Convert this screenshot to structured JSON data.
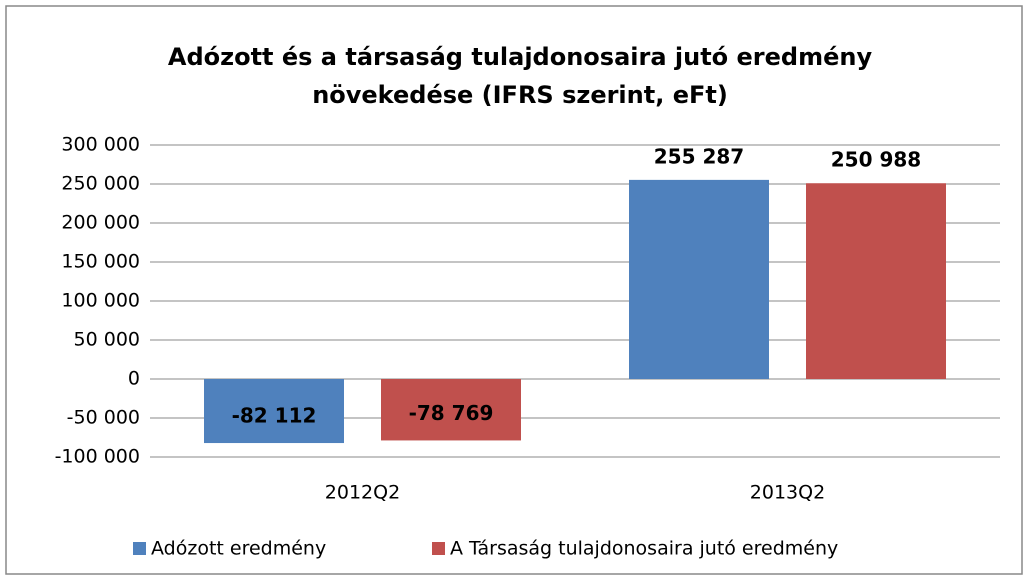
{
  "chart_data": {
    "type": "bar",
    "title": [
      "Adózott és a társaság tulajdonosaira  jutó  eredmény",
      "növekedése (IFRS szerint, eFt)"
    ],
    "categories": [
      "2012Q2",
      "2013Q2"
    ],
    "series": [
      {
        "name": "Adózott eredmény",
        "color": "#4f81bd",
        "values": [
          -82112,
          255287
        ],
        "value_labels": [
          "-82 112",
          "255 287"
        ]
      },
      {
        "name": "A Társaság tulajdonosaira jutó eredmény",
        "color": "#c0504d",
        "values": [
          -78769,
          250988
        ],
        "value_labels": [
          "-78 769",
          "250 988"
        ]
      }
    ],
    "ylim": [
      -100000,
      300000
    ],
    "yticks": [
      {
        "value": -100000,
        "label": "-100 000"
      },
      {
        "value": -50000,
        "label": "-50 000"
      },
      0,
      {
        "value": 50000,
        "label": "50 000"
      },
      {
        "value": 100000,
        "label": "100 000"
      },
      {
        "value": 150000,
        "label": "150 000"
      },
      {
        "value": 200000,
        "label": "200 000"
      },
      {
        "value": 250000,
        "label": "250 000"
      },
      {
        "value": 300000,
        "label": "300 000"
      }
    ],
    "grid": true,
    "legend": "bottom"
  }
}
